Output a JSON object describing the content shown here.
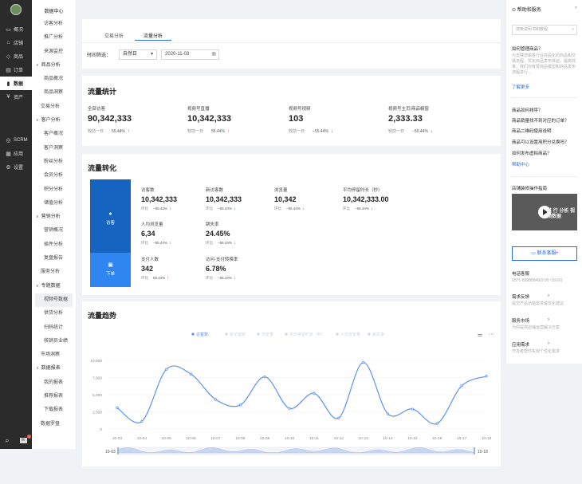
{
  "rail": {
    "items": [
      {
        "icon": "monitor-icon",
        "glyph": "▭",
        "label": "概况"
      },
      {
        "icon": "shop-icon",
        "glyph": "⌂",
        "label": "店铺"
      },
      {
        "icon": "tag-icon",
        "glyph": "◇",
        "label": "商品"
      },
      {
        "icon": "order-icon",
        "glyph": "▤",
        "label": "订单"
      },
      {
        "icon": "chart-icon",
        "glyph": "▮",
        "label": "数据"
      },
      {
        "icon": "asset-icon",
        "glyph": "¥",
        "label": "资产"
      }
    ],
    "lower": [
      {
        "icon": "scrm-icon",
        "glyph": "◎",
        "label": "SCRM"
      },
      {
        "icon": "apps-icon",
        "glyph": "▦",
        "label": "应用"
      },
      {
        "icon": "settings-icon",
        "glyph": "⚙",
        "label": "设置"
      }
    ],
    "badge": "1"
  },
  "sidebar": {
    "title": "数据中心",
    "entries": [
      {
        "kind": "it",
        "label": "访客分析"
      },
      {
        "kind": "it",
        "label": "推广分析"
      },
      {
        "kind": "it",
        "label": "来源监控"
      },
      {
        "kind": "gh",
        "label": "商品分析"
      },
      {
        "kind": "it",
        "label": "商品概况"
      },
      {
        "kind": "it",
        "label": "商品洞察"
      },
      {
        "kind": "gl",
        "label": "交易分析"
      },
      {
        "kind": "gh",
        "label": "客户分析"
      },
      {
        "kind": "it",
        "label": "客户概况"
      },
      {
        "kind": "it",
        "label": "客户洞察"
      },
      {
        "kind": "it",
        "label": "粉丝分析"
      },
      {
        "kind": "it",
        "label": "会员分析"
      },
      {
        "kind": "it",
        "label": "积分分析"
      },
      {
        "kind": "it",
        "label": "储值分析"
      },
      {
        "kind": "gh",
        "label": "营销分析"
      },
      {
        "kind": "it",
        "label": "营销概况"
      },
      {
        "kind": "it",
        "label": "插件分析"
      },
      {
        "kind": "it",
        "label": "复盘报告"
      },
      {
        "kind": "gl",
        "label": "服务分析"
      },
      {
        "kind": "gh",
        "label": "专题数据"
      },
      {
        "kind": "active",
        "label": "视频号数据"
      },
      {
        "kind": "it",
        "label": "供货分析"
      },
      {
        "kind": "it",
        "label": "扫码统计"
      },
      {
        "kind": "it",
        "label": "核销员业绩"
      },
      {
        "kind": "gl",
        "label": "市场洞察"
      },
      {
        "kind": "gh",
        "label": "数据报表"
      },
      {
        "kind": "it",
        "label": "我的报表"
      },
      {
        "kind": "it",
        "label": "推荐报表"
      },
      {
        "kind": "it",
        "label": "下载报表"
      },
      {
        "kind": "gl",
        "label": "数据罗盘"
      }
    ]
  },
  "tabs": [
    "交易分析",
    "流量分析"
  ],
  "filter": {
    "label": "时间筛选：",
    "select": "自然日",
    "date": "2020-11-03"
  },
  "traffic_stats": {
    "title": "流量统计",
    "items": [
      {
        "label": "全部访客",
        "value": "90,342,333",
        "cmp": "较前一日",
        "pct": "55.44%",
        "dir": "up"
      },
      {
        "label": "视频号直播",
        "value": "10,342,333",
        "cmp": "较前一日",
        "pct": "55.44%",
        "dir": "up"
      },
      {
        "label": "视频号视频",
        "value": "103",
        "cmp": "较前一日",
        "pct": "−55.44%",
        "dir": "down"
      },
      {
        "label": "视频号主页/商品橱窗",
        "value": "2,333.33",
        "cmp": "较前一日",
        "pct": "−55.44%",
        "dir": "down"
      }
    ]
  },
  "conversion": {
    "title": "流量转化",
    "funnel": [
      "访客",
      "下单"
    ],
    "metrics": [
      {
        "label": "访客数",
        "value": "10,342,333",
        "cmp": "环比",
        "pct": "−55.44%",
        "dir": "down"
      },
      {
        "label": "新访客数",
        "value": "10,342,333",
        "cmp": "环比",
        "pct": "−55.44%",
        "dir": "down"
      },
      {
        "label": "浏览量",
        "value": "10,342",
        "cmp": "环比",
        "pct": "−55.44%",
        "dir": "down"
      },
      {
        "label": "平均停留时长（秒）",
        "value": "10,342,333.00",
        "cmp": "环比",
        "pct": "−55.44%",
        "dir": "down"
      },
      {
        "label": "人均浏览量",
        "value": "6,34",
        "cmp": "环比",
        "pct": "−55.44%",
        "dir": "down"
      },
      {
        "label": "跳失率",
        "value": "24.45%",
        "cmp": "环比",
        "pct": "−55.44%",
        "dir": "down"
      },
      {
        "label": "支付人数",
        "value": "342",
        "cmp": "环比",
        "pct": "55.44%",
        "dir": "up"
      },
      {
        "label": "访问-支付转换率",
        "value": "6.78%",
        "cmp": "环比",
        "pct": "−55.44%",
        "dir": "down"
      }
    ]
  },
  "trend": {
    "title": "流量趋势",
    "legend": [
      "访客数",
      "新访客数",
      "浏览量",
      "平均停留时长（秒）",
      "人均浏览量",
      "跳失率"
    ],
    "range_start": "10-03",
    "range_end": "10-18"
  },
  "chart_data": {
    "type": "line",
    "title": "流量趋势",
    "categories": [
      "10-03",
      "10-04",
      "10-05",
      "10-06",
      "10-07",
      "10-08",
      "10-09",
      "10-10",
      "10-11",
      "10-12",
      "10-13",
      "10-14",
      "10-15",
      "10-16",
      "10-17",
      "10-18"
    ],
    "series": [
      {
        "name": "访客数",
        "values": [
          3100,
          1100,
          8700,
          8000,
          4300,
          3500,
          7600,
          3000,
          5200,
          1600,
          9700,
          2200,
          2900,
          800,
          6300,
          7700
        ]
      }
    ],
    "y_ticks": [
      "0",
      "2,500",
      "5,000",
      "7,500",
      "10,000"
    ],
    "ylim": [
      0,
      10000
    ],
    "grid": true,
    "colors": {
      "line": "#5b8ff9",
      "inactive_legend": "#cfd6e3"
    }
  },
  "help": {
    "title": "帮助和服务",
    "search_placeholder": "搜索说明书和教程",
    "q1": "如何管理商品？",
    "q1_desc": "为支撑您做各行业商品化的商品和交易流程，优化商品发布体验，提高效率。我们对有赞商品模型和商品发布流程进行...",
    "more": "了解更多",
    "links": [
      "商品如何排序？",
      "商品销量找不到对应的订单？",
      "商品二维码使用说明",
      "商品可以设置用积分兑换吗？",
      "如何发布虚拟商品？"
    ],
    "help_center": "帮助中心",
    "guide": "店铺装修操作指南",
    "video_text": "进 行 分析 视频数据",
    "service_btn": "联系客服",
    "phone_label": "电话客服",
    "phone": "0571-89988848(9:00~18:00)",
    "feedback": "需求反馈",
    "feedback_desc": "提交产品功能需求或优化建议",
    "market": "服务市场",
    "market_desc": "为你提供店铺运营解决方案",
    "app": "应用需求",
    "app_desc": "开发者帮你实现个性化需求"
  }
}
